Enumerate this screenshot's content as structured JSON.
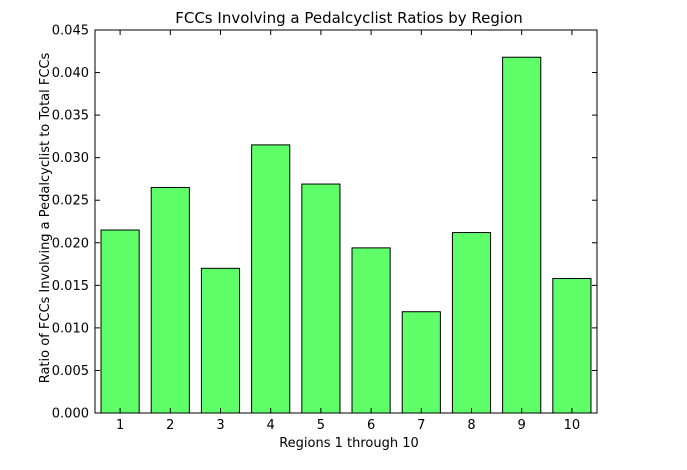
{
  "chart_data": {
    "type": "bar",
    "title": "FCCs Involving a Pedalcyclist Ratios by Region",
    "xlabel": "Regions 1 through 10",
    "ylabel": "Ratio of FCCs Involving a Pedalcyclist to Total FCCs",
    "categories": [
      "1",
      "2",
      "3",
      "4",
      "5",
      "6",
      "7",
      "8",
      "9",
      "10"
    ],
    "values": [
      0.0215,
      0.0265,
      0.017,
      0.0315,
      0.0269,
      0.0194,
      0.0119,
      0.0212,
      0.0418,
      0.0158
    ],
    "ylim": [
      0,
      0.045
    ],
    "yticks": [
      "0.000",
      "0.005",
      "0.010",
      "0.015",
      "0.020",
      "0.025",
      "0.030",
      "0.035",
      "0.040",
      "0.045"
    ],
    "bar_color": "#5fff6a",
    "edge_color": "#000000",
    "grid": false,
    "legend": "none"
  }
}
